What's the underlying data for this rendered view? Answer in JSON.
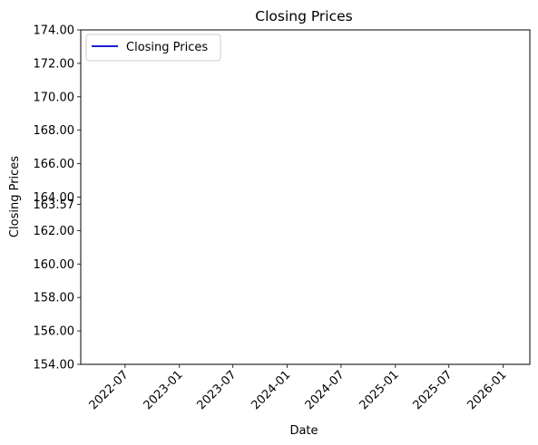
{
  "chart_data": {
    "type": "line",
    "title": "Closing Prices",
    "xlabel": "Date",
    "ylabel": "Closing Prices",
    "ylim": [
      154,
      174
    ],
    "xlim": [
      "2022-02-01",
      "2026-04-01"
    ],
    "x_ticks": [
      "2022-07",
      "2023-01",
      "2023-07",
      "2024-01",
      "2024-07",
      "2025-01",
      "2025-07",
      "2026-01"
    ],
    "y_ticks": [
      "154.00",
      "156.00",
      "158.00",
      "160.00",
      "162.00",
      "163.57",
      "164.00",
      "166.00",
      "168.00",
      "170.00",
      "172.00",
      "174.00"
    ],
    "series": [
      {
        "name": "Closing Prices",
        "color": "#0000cc",
        "x": [],
        "values": []
      }
    ],
    "legend": {
      "placement": "top-left",
      "entries": [
        "Closing Prices"
      ]
    },
    "grid": false
  }
}
